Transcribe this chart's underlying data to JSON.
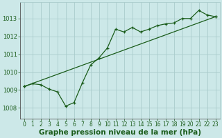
{
  "title": "Graphe pression niveau de la mer (hPa)",
  "background_color": "#cce8e8",
  "grid_color": "#aacccc",
  "line_color": "#1a5c1a",
  "xlim": [
    -0.5,
    23.5
  ],
  "ylim": [
    1007.4,
    1013.9
  ],
  "yticks": [
    1008,
    1009,
    1010,
    1011,
    1012,
    1013
  ],
  "xticks": [
    0,
    1,
    2,
    3,
    4,
    5,
    6,
    7,
    8,
    9,
    10,
    11,
    12,
    13,
    14,
    15,
    16,
    17,
    18,
    19,
    20,
    21,
    22,
    23
  ],
  "xtick_labels": [
    "0",
    "1",
    "2",
    "3",
    "4",
    "5",
    "6",
    "7",
    "8",
    "9",
    "10",
    "11",
    "12",
    "13",
    "14",
    "15",
    "16",
    "17",
    "18",
    "19",
    "20",
    "21",
    "22",
    "23"
  ],
  "line1_x": [
    0,
    1,
    2,
    3,
    4,
    5,
    6,
    7,
    8,
    9,
    10,
    11,
    12,
    13,
    14,
    15,
    16,
    17,
    18,
    19,
    20,
    21,
    22,
    23
  ],
  "line1_y": [
    1009.2,
    1009.35,
    1009.3,
    1009.05,
    1008.9,
    1008.1,
    1008.3,
    1009.4,
    1010.4,
    1010.8,
    1011.35,
    1012.4,
    1012.25,
    1012.5,
    1012.25,
    1012.4,
    1012.6,
    1012.7,
    1012.75,
    1013.0,
    1013.0,
    1013.45,
    1013.2,
    1013.1
  ],
  "line2_x": [
    0,
    23
  ],
  "line2_y": [
    1009.2,
    1013.1
  ],
  "tick_fontsize": 5.5,
  "title_fontsize": 7.5,
  "ylabel_fontsize": 6.0
}
